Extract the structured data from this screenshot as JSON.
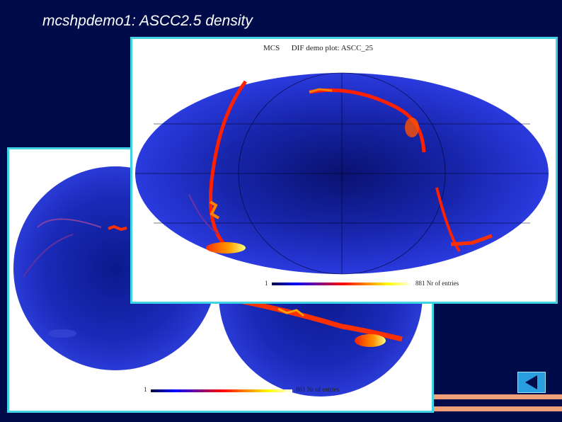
{
  "slide": {
    "title": "mcshpdemo1: ASCC2.5 density"
  },
  "back_plot": {
    "colorbar_min": "1",
    "colorbar_max_label": "881 Nr of entries"
  },
  "front_plot": {
    "title": "MCS      DIF demo plot: ASCC_25",
    "colorbar_min": "1",
    "colorbar_max_label": "881 Nr of entries"
  },
  "colors": {
    "background": "#000c4a",
    "panel_border": "#3fd3e6",
    "stripe": "#f2a07a",
    "nav_button": "#2a9fe0"
  },
  "icons": {
    "nav_button": "triangle-left-icon"
  }
}
